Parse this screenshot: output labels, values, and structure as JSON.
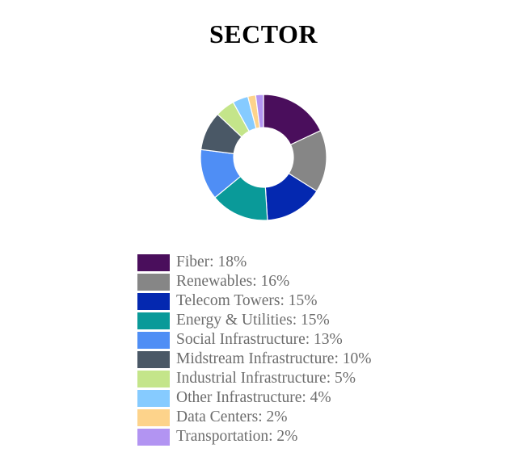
{
  "chart_data": {
    "type": "pie",
    "title": "SECTOR",
    "donut": true,
    "legend_position": "bottom-left",
    "slices": [
      {
        "label": "Fiber: 18%",
        "name": "Fiber",
        "value": 18,
        "color": "#4a0e5c"
      },
      {
        "label": "Renewables: 16%",
        "name": "Renewables",
        "value": 16,
        "color": "#868686"
      },
      {
        "label": "Telecom Towers: 15%",
        "name": "Telecom Towers",
        "value": 15,
        "color": "#0428b0"
      },
      {
        "label": "Energy & Utilities: 15%",
        "name": "Energy & Utilities",
        "value": 15,
        "color": "#0a9a99"
      },
      {
        "label": "Social Infrastructure: 13%",
        "name": "Social Infrastructure",
        "value": 13,
        "color": "#4f8ef5"
      },
      {
        "label": "Midstream Infrastructure: 10%",
        "name": "Midstream Infrastructure",
        "value": 10,
        "color": "#4a5866"
      },
      {
        "label": "Industrial Infrastructure: 5%",
        "name": "Industrial Infrastructure",
        "value": 5,
        "color": "#c4e58a"
      },
      {
        "label": "Other Infrastructure: 4%",
        "name": "Other Infrastructure",
        "value": 4,
        "color": "#86cbff"
      },
      {
        "label": "Data Centers: 2%",
        "name": "Data Centers",
        "value": 2,
        "color": "#fdd38b"
      },
      {
        "label": "Transportation: 2%",
        "name": "Transportation",
        "value": 2,
        "color": "#b294f2"
      }
    ]
  }
}
